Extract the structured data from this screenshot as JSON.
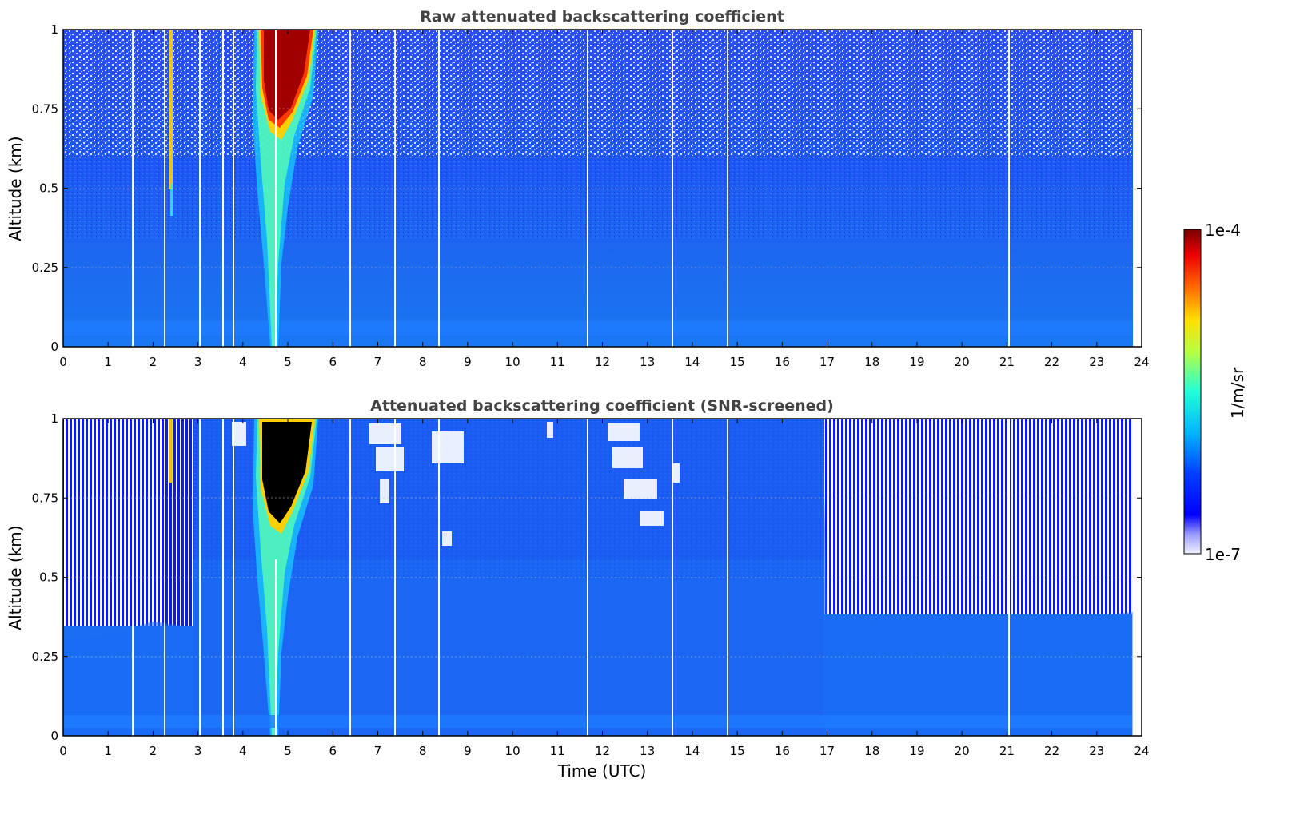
{
  "chart_data": [
    {
      "type": "heatmap",
      "title": "Raw attenuated backscattering coefficient",
      "ylabel": "Altitude (km)",
      "xlabel": "",
      "xlim": [
        0,
        24
      ],
      "ylim": [
        0,
        1
      ],
      "x_ticks": [
        "0",
        "1",
        "2",
        "3",
        "4",
        "5",
        "6",
        "7",
        "8",
        "9",
        "10",
        "11",
        "12",
        "13",
        "14",
        "15",
        "16",
        "17",
        "18",
        "19",
        "20",
        "21",
        "22",
        "23",
        "24"
      ],
      "y_ticks": [
        "0",
        "0.25",
        "0.5",
        "0.75",
        "1"
      ],
      "grid": true,
      "features": [
        {
          "kind": "aerosol plume",
          "x_start": 4.3,
          "x_end": 6.1,
          "peak_value": "1e-4",
          "altitude_range": [
            0,
            1
          ]
        },
        {
          "kind": "thin vertical feature",
          "x": 2.4,
          "altitude_range": [
            0.45,
            1
          ]
        }
      ]
    },
    {
      "type": "heatmap",
      "title": "Attenuated backscattering coefficient (SNR-screened)",
      "ylabel": "Altitude (km)",
      "xlabel": "Time (UTC)",
      "xlim": [
        0,
        24
      ],
      "ylim": [
        0,
        1
      ],
      "x_ticks": [
        "0",
        "1",
        "2",
        "3",
        "4",
        "5",
        "6",
        "7",
        "8",
        "9",
        "10",
        "11",
        "12",
        "13",
        "14",
        "15",
        "16",
        "17",
        "18",
        "19",
        "20",
        "21",
        "22",
        "23",
        "24"
      ],
      "y_ticks": [
        "0",
        "0.25",
        "0.5",
        "0.75",
        "1"
      ],
      "grid": true,
      "screening_top_km": [
        {
          "x": 0.0,
          "top": 0.31
        },
        {
          "x": 0.5,
          "top": 0.31
        },
        {
          "x": 1.0,
          "top": 0.32
        },
        {
          "x": 1.5,
          "top": 0.34
        },
        {
          "x": 2.0,
          "top": 0.36
        },
        {
          "x": 2.5,
          "top": 0.35
        },
        {
          "x": 2.9,
          "top": 0.34
        },
        {
          "x": 3.0,
          "top": 1.0
        },
        {
          "x": 16.9,
          "top": 1.0
        },
        {
          "x": 17.0,
          "top": 0.37
        },
        {
          "x": 18.0,
          "top": 0.36
        },
        {
          "x": 19.0,
          "top": 0.37
        },
        {
          "x": 20.0,
          "top": 0.38
        },
        {
          "x": 21.0,
          "top": 0.36
        },
        {
          "x": 22.0,
          "top": 0.38
        },
        {
          "x": 23.0,
          "top": 0.38
        },
        {
          "x": 23.8,
          "top": 0.39
        }
      ]
    }
  ],
  "colorbar": {
    "label": "1/m/sr",
    "max_label": "1e-4",
    "min_label": "1e-7",
    "scale": "log",
    "colormap": "jet"
  }
}
